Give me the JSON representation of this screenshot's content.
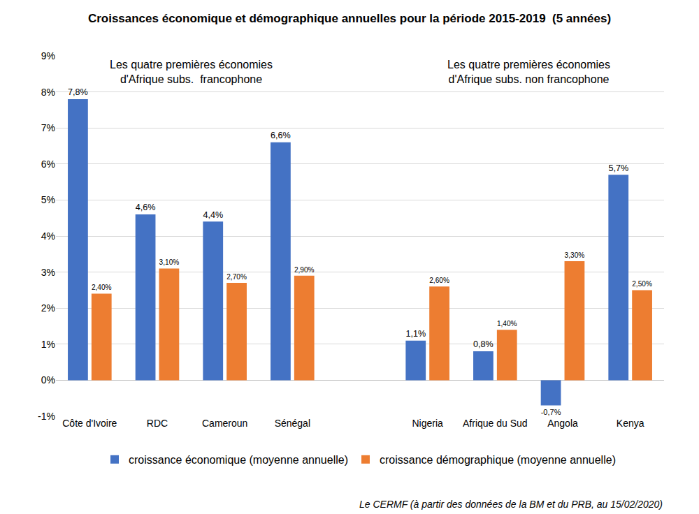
{
  "chart_data": {
    "type": "bar",
    "title": "Croissances économique et démographique annuelles pour la période 2015-2019  (5 années)",
    "categories": [
      "Côte d'Ivoire",
      "RDC",
      "Cameroun",
      "Sénégal",
      null,
      "Nigeria",
      "Afrique du Sud",
      "Angola",
      "Kenya"
    ],
    "series": [
      {
        "name": "croissance économique (moyenne annuelle)",
        "color": "#4472C4",
        "values": [
          7.8,
          4.6,
          4.4,
          6.6,
          null,
          1.1,
          0.8,
          -0.7,
          5.7
        ],
        "value_labels": [
          "7,8%",
          "4,6%",
          "4,4%",
          "6,6%",
          null,
          "1,1%",
          "0,8%",
          "-0,7%",
          "5,7%"
        ]
      },
      {
        "name": "croissance démographique (moyenne annuelle)",
        "color": "#ED7D31",
        "values": [
          2.4,
          3.1,
          2.7,
          2.9,
          null,
          2.6,
          1.4,
          3.3,
          2.5
        ],
        "value_labels": [
          "2,40%",
          "3,10%",
          "2,70%",
          "2,90%",
          null,
          "2,60%",
          "1,40%",
          "3,30%",
          "2,50%"
        ]
      }
    ],
    "ylim": [
      -1,
      9
    ],
    "yticks": [
      {
        "value": -1,
        "label": "-1%"
      },
      {
        "value": 0,
        "label": "0%"
      },
      {
        "value": 1,
        "label": "1%"
      },
      {
        "value": 2,
        "label": "2%"
      },
      {
        "value": 3,
        "label": "3%"
      },
      {
        "value": 4,
        "label": "4%"
      },
      {
        "value": 5,
        "label": "5%"
      },
      {
        "value": 6,
        "label": "6%"
      },
      {
        "value": 7,
        "label": "7%"
      },
      {
        "value": 8,
        "label": "8%"
      },
      {
        "value": 9,
        "label": "9%"
      }
    ],
    "grid": true,
    "legend": "bottom",
    "data_labels": true,
    "group_labels": [
      "Les quatre premières économies\nd'Afrique subs.  francophone",
      "Les quatre premières économies\nd'Afrique subs. non francophone"
    ],
    "source": "Le CERMF (à partir des données de la BM et du PRB, au 15/02/2020)"
  }
}
